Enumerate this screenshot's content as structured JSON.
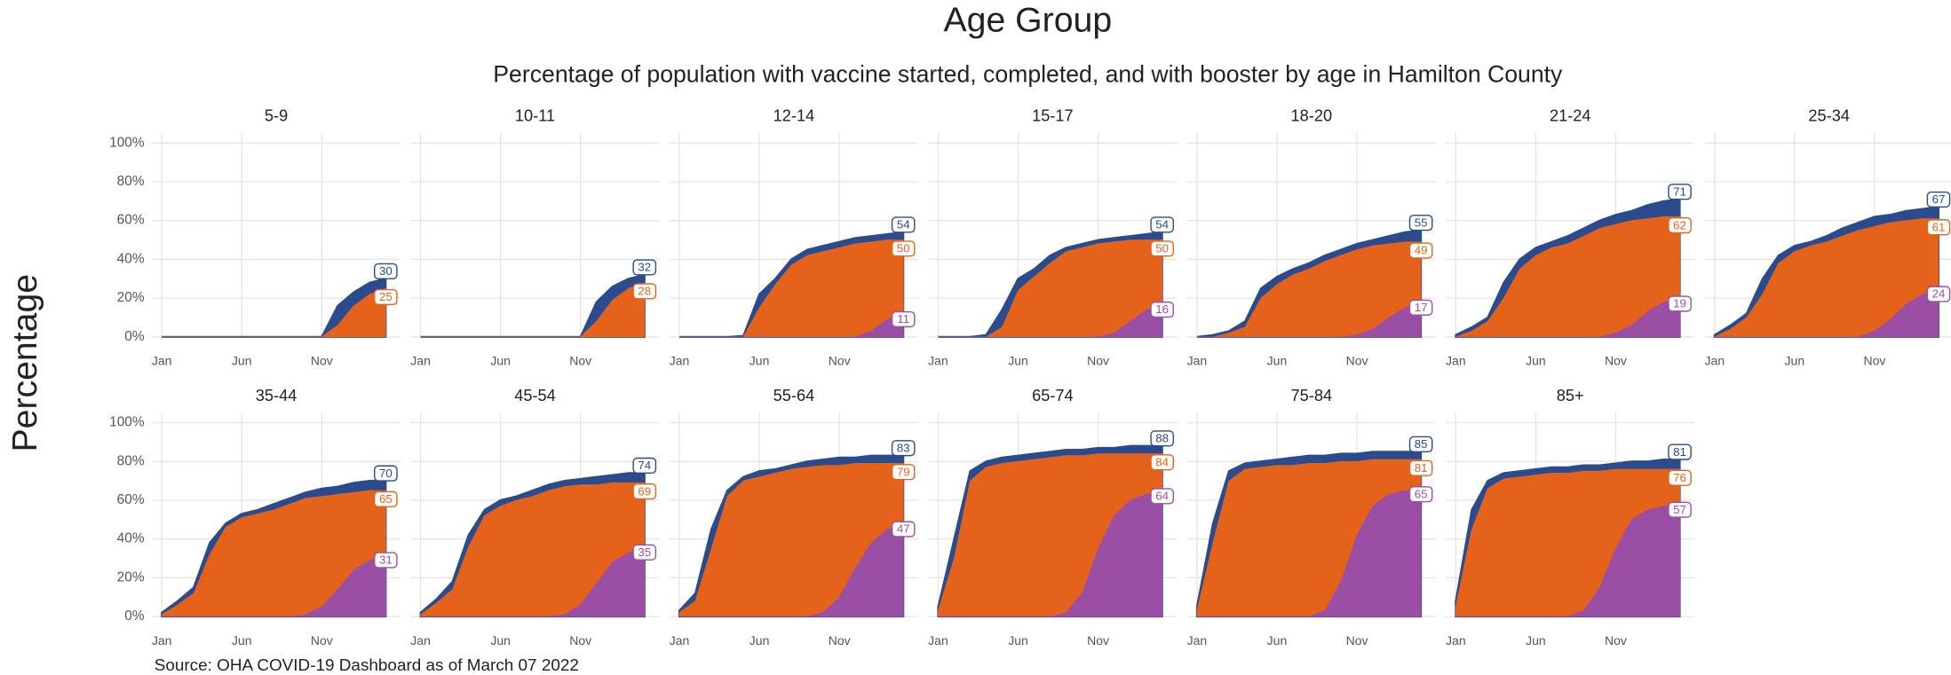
{
  "chart_data": {
    "type": "area",
    "title": "Age Group",
    "subtitle": "Percentage of population with vaccine started, completed, and with booster by age in Hamilton County",
    "y_label": "Percentage",
    "source": "Source: OHA COVID-19 Dashboard as of March 07 2022",
    "categories": [
      "Jan",
      null,
      null,
      null,
      null,
      "Jun",
      null,
      null,
      null,
      null,
      "Nov",
      null,
      null,
      null,
      null
    ],
    "ylim": [
      0,
      100
    ],
    "yticks": [
      {
        "value": 0,
        "label": "0%"
      },
      {
        "value": 20,
        "label": "20%"
      },
      {
        "value": 40,
        "label": "40%"
      },
      {
        "value": 60,
        "label": "60%"
      },
      {
        "value": 80,
        "label": "80%"
      },
      {
        "value": 100,
        "label": "100%"
      }
    ],
    "grid": true,
    "colors": [
      "#2a4b8d",
      "#e5621b",
      "#9a4fa5"
    ],
    "panels": [
      {
        "title": "5-9",
        "series": [
          {
            "values": [
              0,
              0,
              0,
              0,
              0,
              0,
              0,
              0,
              0,
              0,
              0,
              16,
              23,
              28,
              30
            ]
          },
          {
            "values": [
              0,
              0,
              0,
              0,
              0,
              0,
              0,
              0,
              0,
              0,
              0,
              6,
              16,
              22,
              25
            ]
          }
        ]
      },
      {
        "title": "10-11",
        "series": [
          {
            "values": [
              0,
              0,
              0,
              0,
              0,
              0,
              0,
              0,
              0,
              0,
              0,
              18,
              26,
              30,
              32
            ]
          },
          {
            "values": [
              0,
              0,
              0,
              0,
              0,
              0,
              0,
              0,
              0,
              0,
              0,
              8,
              19,
              25,
              28
            ]
          }
        ]
      },
      {
        "title": "12-14",
        "series": [
          {
            "values": [
              0,
              0,
              0,
              0,
              0.5,
              22,
              30,
              40,
              45,
              47,
              49,
              51,
              52,
              53,
              54
            ]
          },
          {
            "values": [
              0,
              0,
              0,
              0,
              0,
              15,
              27,
              37,
              42,
              44,
              46,
              48,
              49,
              50,
              50
            ]
          },
          {
            "values": [
              0,
              0,
              0,
              0,
              0,
              0,
              0,
              0,
              0,
              0,
              0,
              0,
              3,
              9,
              11
            ]
          }
        ]
      },
      {
        "title": "15-17",
        "series": [
          {
            "values": [
              0,
              0,
              0,
              1,
              14,
              30,
              35,
              42,
              46,
              48,
              50,
              51,
              52,
              53,
              54
            ]
          },
          {
            "values": [
              0,
              0,
              0,
              0,
              5,
              24,
              31,
              38,
              44,
              46,
              48,
              49,
              50,
              50,
              50
            ]
          },
          {
            "values": [
              0,
              0,
              0,
              0,
              0,
              0,
              0,
              0,
              0,
              0,
              0,
              2,
              8,
              14,
              16
            ]
          }
        ]
      },
      {
        "title": "18-20",
        "series": [
          {
            "values": [
              0,
              1,
              3,
              8,
              25,
              31,
              35,
              38,
              42,
              45,
              48,
              50,
              52,
              54,
              55
            ]
          },
          {
            "values": [
              0,
              0,
              2,
              5,
              20,
              27,
              32,
              35,
              39,
              42,
              45,
              47,
              48,
              49,
              49
            ]
          },
          {
            "values": [
              0,
              0,
              0,
              0,
              0,
              0,
              0,
              0,
              0,
              0,
              1,
              4,
              10,
              15,
              17
            ]
          }
        ]
      },
      {
        "title": "21-24",
        "series": [
          {
            "values": [
              1,
              5,
              10,
              28,
              40,
              46,
              49,
              52,
              56,
              60,
              63,
              65,
              68,
              70,
              71
            ]
          },
          {
            "values": [
              0,
              3,
              8,
              20,
              35,
              42,
              46,
              48,
              52,
              56,
              58,
              60,
              61,
              62,
              62
            ]
          },
          {
            "values": [
              0,
              0,
              0,
              0,
              0,
              0,
              0,
              0,
              0,
              0,
              2,
              6,
              13,
              18,
              19
            ]
          }
        ]
      },
      {
        "title": "25-34",
        "series": [
          {
            "values": [
              1,
              6,
              12,
              30,
              42,
              47,
              49,
              52,
              56,
              59,
              62,
              63,
              65,
              66,
              67
            ]
          },
          {
            "values": [
              0,
              4,
              10,
              22,
              38,
              44,
              47,
              49,
              52,
              55,
              57,
              59,
              60,
              61,
              61
            ]
          },
          {
            "values": [
              0,
              0,
              0,
              0,
              0,
              0,
              0,
              0,
              0,
              0,
              3,
              9,
              17,
              22,
              24
            ]
          }
        ]
      },
      {
        "title": "35-44",
        "series": [
          {
            "values": [
              2,
              8,
              15,
              38,
              48,
              53,
              55,
              58,
              61,
              64,
              66,
              67,
              69,
              70,
              70
            ]
          },
          {
            "values": [
              1,
              6,
              12,
              32,
              46,
              51,
              53,
              55,
              58,
              61,
              62,
              63,
              64,
              65,
              65
            ]
          },
          {
            "values": [
              0,
              0,
              0,
              0,
              0,
              0,
              0,
              0,
              0,
              1,
              5,
              14,
              24,
              29,
              31
            ]
          }
        ]
      },
      {
        "title": "45-54",
        "series": [
          {
            "values": [
              2,
              9,
              18,
              42,
              55,
              60,
              62,
              65,
              68,
              70,
              71,
              72,
              73,
              74,
              74
            ]
          },
          {
            "values": [
              1,
              7,
              14,
              36,
              52,
              57,
              60,
              62,
              65,
              67,
              68,
              68,
              69,
              69,
              69
            ]
          },
          {
            "values": [
              0,
              0,
              0,
              0,
              0,
              0,
              0,
              0,
              0,
              1,
              6,
              17,
              28,
              33,
              35
            ]
          }
        ]
      },
      {
        "title": "55-64",
        "series": [
          {
            "values": [
              3,
              12,
              45,
              65,
              72,
              75,
              76,
              78,
              80,
              81,
              82,
              82,
              83,
              83,
              83
            ]
          },
          {
            "values": [
              2,
              8,
              35,
              62,
              70,
              72,
              74,
              76,
              77,
              78,
              78,
              79,
              79,
              79,
              79
            ]
          },
          {
            "values": [
              0,
              0,
              0,
              0,
              0,
              0,
              0,
              0,
              0,
              2,
              10,
              25,
              38,
              45,
              47
            ]
          }
        ]
      },
      {
        "title": "65-74",
        "series": [
          {
            "values": [
              5,
              40,
              75,
              80,
              82,
              83,
              84,
              85,
              86,
              86,
              87,
              87,
              88,
              88,
              88
            ]
          },
          {
            "values": [
              3,
              30,
              70,
              77,
              79,
              80,
              81,
              82,
              83,
              83,
              84,
              84,
              84,
              84,
              84
            ]
          },
          {
            "values": [
              0,
              0,
              0,
              0,
              0,
              0,
              0,
              0,
              2,
              12,
              35,
              52,
              60,
              63,
              64
            ]
          }
        ]
      },
      {
        "title": "75-84",
        "series": [
          {
            "values": [
              5,
              48,
              75,
              79,
              80,
              81,
              82,
              83,
              83,
              84,
              84,
              85,
              85,
              85,
              85
            ]
          },
          {
            "values": [
              3,
              38,
              70,
              76,
              77,
              78,
              78,
              79,
              79,
              80,
              80,
              81,
              81,
              81,
              81
            ]
          },
          {
            "values": [
              0,
              0,
              0,
              0,
              0,
              0,
              0,
              0,
              3,
              18,
              42,
              57,
              63,
              65,
              65
            ]
          }
        ]
      },
      {
        "title": "85+",
        "series": [
          {
            "values": [
              8,
              55,
              70,
              74,
              75,
              76,
              77,
              77,
              78,
              78,
              79,
              80,
              80,
              81,
              81
            ]
          },
          {
            "values": [
              5,
              45,
              66,
              71,
              72,
              73,
              74,
              74,
              75,
              75,
              76,
              76,
              76,
              76,
              76
            ]
          },
          {
            "values": [
              0,
              0,
              0,
              0,
              0,
              0,
              0,
              0,
              3,
              15,
              35,
              50,
              55,
              57,
              57
            ]
          }
        ]
      }
    ]
  }
}
